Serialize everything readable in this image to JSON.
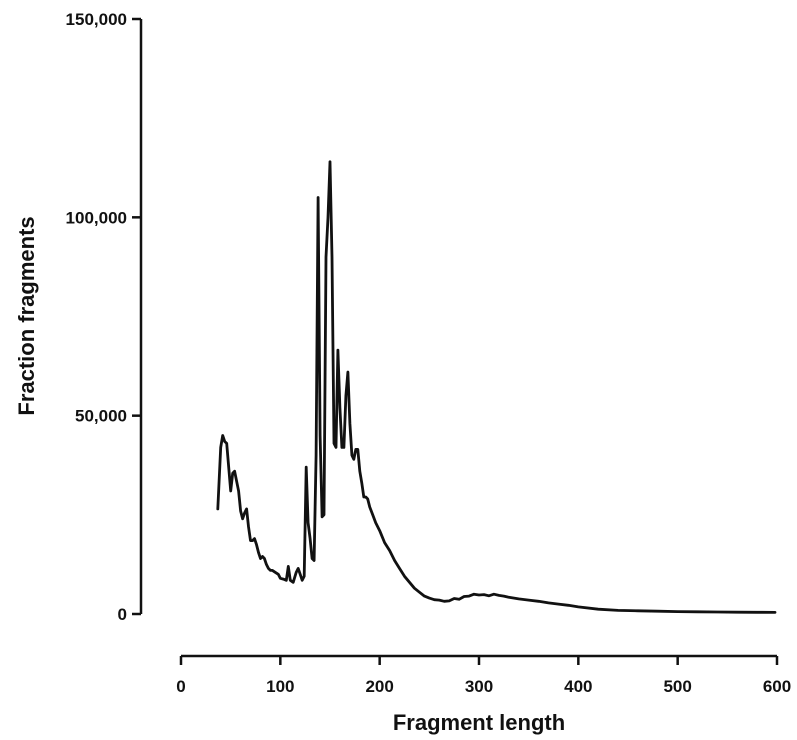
{
  "chart_data": {
    "type": "line",
    "title": "",
    "xlabel": "Fragment length",
    "ylabel": "Fraction fragments",
    "xlim": [
      0,
      600
    ],
    "ylim": [
      0,
      150000
    ],
    "x_ticks": [
      {
        "value": 0,
        "label": "0"
      },
      {
        "value": 100,
        "label": "100"
      },
      {
        "value": 200,
        "label": "200"
      },
      {
        "value": 300,
        "label": "300"
      },
      {
        "value": 400,
        "label": "400"
      },
      {
        "value": 500,
        "label": "500"
      },
      {
        "value": 600,
        "label": "600"
      }
    ],
    "y_ticks": [
      {
        "value": 0,
        "label": "0"
      },
      {
        "value": 50000,
        "label": "50,000"
      },
      {
        "value": 100000,
        "label": "100,000"
      },
      {
        "value": 150000,
        "label": "150,000"
      }
    ],
    "grid": false,
    "legend": "none",
    "line_color": "#111111",
    "series": [
      {
        "x": [
          37,
          40,
          42,
          44,
          46,
          48,
          50,
          52,
          54,
          56,
          58,
          60,
          62,
          64,
          66,
          68,
          70,
          72,
          74,
          76,
          78,
          80,
          82,
          84,
          86,
          88,
          90,
          92,
          95,
          98,
          100,
          103,
          106,
          108,
          110,
          113,
          116,
          118,
          120,
          122,
          124,
          126,
          128,
          130,
          132,
          134,
          136,
          138,
          140,
          142,
          144,
          146,
          148,
          150,
          152,
          154,
          156,
          158,
          160,
          162,
          164,
          166,
          168,
          170,
          172,
          174,
          176,
          178,
          180,
          182,
          184,
          186,
          188,
          190,
          193,
          196,
          200,
          205,
          210,
          215,
          220,
          225,
          230,
          235,
          240,
          245,
          250,
          255,
          260,
          265,
          270,
          275,
          280,
          285,
          290,
          295,
          300,
          305,
          310,
          315,
          320,
          325,
          330,
          340,
          350,
          360,
          370,
          380,
          390,
          400,
          420,
          440,
          460,
          480,
          500,
          520,
          540,
          560,
          580,
          598
        ],
        "y": [
          26500,
          42000,
          45000,
          43500,
          43000,
          37000,
          31000,
          35500,
          36000,
          33500,
          31000,
          26000,
          24000,
          25500,
          26500,
          22000,
          18500,
          18500,
          19000,
          17500,
          15500,
          14000,
          14500,
          14000,
          12500,
          11500,
          11000,
          11000,
          10500,
          10000,
          9000,
          8800,
          8500,
          12000,
          8500,
          8000,
          10500,
          11500,
          10000,
          8500,
          9500,
          37000,
          23000,
          19000,
          14000,
          13500,
          40000,
          105000,
          45000,
          24500,
          25000,
          90000,
          100000,
          114000,
          90000,
          43000,
          42000,
          66500,
          52000,
          42000,
          42000,
          55000,
          61000,
          48000,
          40000,
          39000,
          41500,
          41500,
          36000,
          33000,
          29500,
          29500,
          29000,
          27000,
          25000,
          23000,
          21000,
          18000,
          16000,
          13500,
          11500,
          9500,
          8000,
          6500,
          5500,
          4500,
          4000,
          3600,
          3500,
          3200,
          3300,
          3900,
          3700,
          4400,
          4500,
          5000,
          4800,
          4900,
          4600,
          5000,
          4700,
          4500,
          4200,
          3800,
          3500,
          3200,
          2800,
          2500,
          2200,
          1800,
          1200,
          900,
          800,
          700,
          600,
          550,
          500,
          450,
          420,
          400
        ]
      }
    ]
  }
}
